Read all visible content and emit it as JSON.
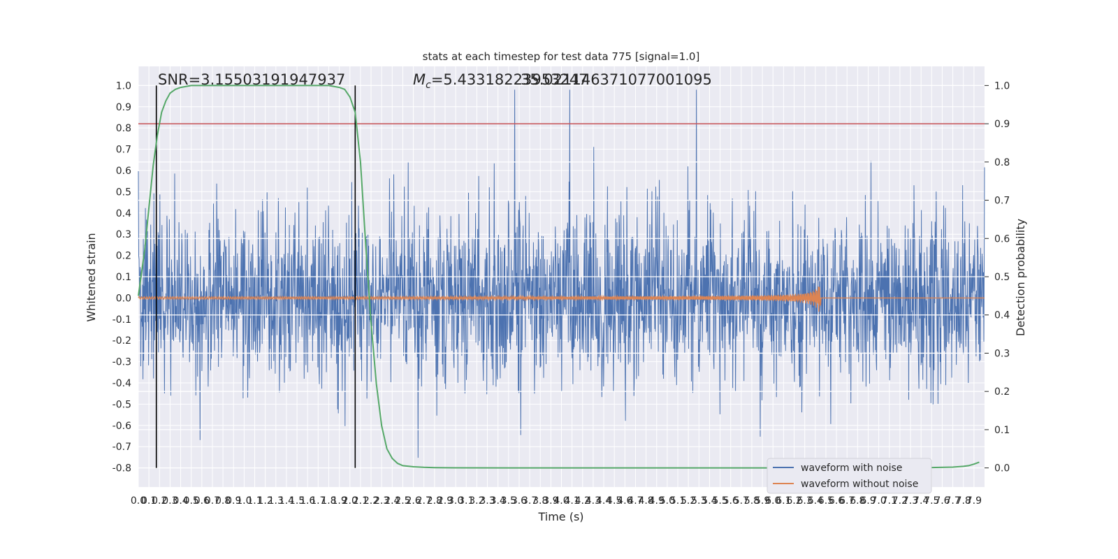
{
  "chart_data": {
    "type": "line",
    "title": "stats at each timestep for test data 775 [signal=1.0]",
    "xlabel": "Time (s)",
    "ylabel_left": "Whitened strain",
    "ylabel_right": "Detection probability",
    "annotations": {
      "snr": "SNR=3.15503191947937",
      "mc": "=5.43318223953247",
      "mc_symbol": "M",
      "mc_sub": "c",
      "overlap": "35.021146371077001095"
    },
    "x_ticks": [
      "0.0",
      "0.1",
      "0.2",
      "0.3",
      "0.4",
      "0.5",
      "0.6",
      "0.7",
      "0.8",
      "0.9",
      "1.0",
      "1.1",
      "1.2",
      "1.3",
      "1.4",
      "1.5",
      "1.6",
      "1.7",
      "1.8",
      "1.9",
      "2.0",
      "2.1",
      "2.2",
      "2.3",
      "2.4",
      "2.5",
      "2.6",
      "2.7",
      "2.8",
      "2.9",
      "3.0",
      "3.1",
      "3.2",
      "3.3",
      "3.4",
      "3.5",
      "3.6",
      "3.7",
      "3.8",
      "3.9",
      "4.0",
      "4.1",
      "4.2",
      "4.3",
      "4.4",
      "4.5",
      "4.6",
      "4.7",
      "4.8",
      "4.9",
      "5.0",
      "5.1",
      "5.2",
      "5.3",
      "5.4",
      "5.5",
      "5.6",
      "5.7",
      "5.8",
      "5.9",
      "6.0",
      "6.1",
      "6.2",
      "6.3",
      "6.4",
      "6.5",
      "6.6",
      "6.7",
      "6.8",
      "6.9",
      "7.0",
      "7.1",
      "7.2",
      "7.3",
      "7.4",
      "7.5",
      "7.6",
      "7.7",
      "7.8",
      "7.9"
    ],
    "y_left_ticks": [
      "-0.8",
      "-0.7",
      "-0.6",
      "-0.5",
      "-0.4",
      "-0.3",
      "-0.2",
      "-0.1",
      "0.0",
      "0.1",
      "0.2",
      "0.3",
      "0.4",
      "0.5",
      "0.6",
      "0.7",
      "0.8",
      "0.9",
      "1.0"
    ],
    "y_right_ticks": [
      "0.0",
      "0.1",
      "0.2",
      "0.3",
      "0.4",
      "0.5",
      "0.6",
      "0.7",
      "0.8",
      "0.9",
      "1.0"
    ],
    "xlim": [
      0,
      8.0
    ],
    "ylim_left": [
      -0.89,
      1.09
    ],
    "ylim_right": [
      -0.05,
      1.05
    ],
    "threshold": 0.9,
    "vlines": [
      0.17,
      2.05
    ],
    "detection_probability": {
      "x": [
        0.0,
        0.06,
        0.1,
        0.14,
        0.18,
        0.22,
        0.26,
        0.3,
        0.35,
        0.4,
        0.5,
        0.6,
        0.8,
        1.0,
        1.5,
        1.8,
        1.9,
        1.95,
        2.0,
        2.05,
        2.1,
        2.15,
        2.2,
        2.25,
        2.3,
        2.35,
        2.4,
        2.45,
        2.5,
        2.6,
        2.7,
        2.8,
        3.0,
        3.5,
        4.0,
        5.0,
        6.0,
        7.0,
        7.5,
        7.7,
        7.8,
        7.85,
        7.9,
        7.95
      ],
      "y": [
        0.45,
        0.57,
        0.68,
        0.79,
        0.87,
        0.93,
        0.96,
        0.98,
        0.99,
        0.995,
        1.0,
        1.0,
        1.0,
        1.0,
        1.0,
        1.0,
        0.995,
        0.99,
        0.97,
        0.93,
        0.8,
        0.58,
        0.38,
        0.22,
        0.11,
        0.05,
        0.025,
        0.012,
        0.006,
        0.003,
        0.0015,
        0.0008,
        0.0003,
        0.0,
        0.0,
        0.0,
        0.0,
        0.0,
        0.001,
        0.002,
        0.004,
        0.006,
        0.01,
        0.015
      ]
    },
    "series": [
      {
        "name": "waveform with noise",
        "color": "#4c72b0"
      },
      {
        "name": "waveform without noise",
        "color": "#dd8452"
      }
    ],
    "colors": {
      "probability": "#55a868",
      "threshold": "#c44e52",
      "vlines": "#000000",
      "background": "#eaeaf2",
      "grid": "#ffffff"
    },
    "legend_position": "lower-right",
    "grid": true
  }
}
